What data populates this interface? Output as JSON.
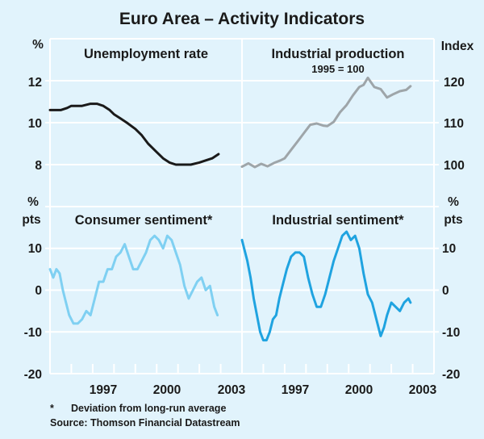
{
  "title": "Euro Area – Activity Indicators",
  "footnote_marker": "*",
  "footnote": "Deviation from long-run average",
  "source": "Source: Thomson Financial Datastream",
  "colors": {
    "background": "#e1f3fc",
    "grid": "#ffffff",
    "unemployment": "#1a1a1a",
    "industrial_production": "#9ea5a9",
    "consumer_sentiment": "#7fd0f2",
    "industrial_sentiment": "#1fa3e0"
  },
  "chart_data": [
    {
      "type": "line",
      "title": "Unemployment rate",
      "panel": "top-left",
      "ylabel": "%",
      "yaxis_side": "left",
      "ylim": [
        6,
        14
      ],
      "yticks": [
        8,
        10,
        12
      ],
      "xlim": [
        1995,
        2004
      ],
      "x": [
        1995.0,
        1995.5,
        1995.8,
        1996.0,
        1996.5,
        1996.9,
        1997.2,
        1997.5,
        1997.8,
        1998.0,
        1998.3,
        1998.6,
        1999.0,
        1999.3,
        1999.6,
        2000.0,
        2000.3,
        2000.6,
        2000.9,
        2001.2,
        2001.6,
        2002.0,
        2002.3,
        2002.6,
        2002.9
      ],
      "values": [
        10.6,
        10.6,
        10.7,
        10.8,
        10.8,
        10.9,
        10.9,
        10.8,
        10.6,
        10.4,
        10.2,
        10.0,
        9.7,
        9.4,
        9.0,
        8.6,
        8.3,
        8.1,
        8.0,
        8.0,
        8.0,
        8.1,
        8.2,
        8.3,
        8.5
      ]
    },
    {
      "type": "line",
      "title": "Industrial production",
      "subtitle": "1995 = 100",
      "panel": "top-right",
      "ylabel": "Index",
      "yaxis_side": "right",
      "ylim": [
        90,
        130
      ],
      "yticks": [
        100,
        110,
        120
      ],
      "xlim": [
        1995,
        2004
      ],
      "x": [
        1995.0,
        1995.3,
        1995.6,
        1995.9,
        1996.2,
        1996.5,
        1996.8,
        1997.0,
        1997.3,
        1997.6,
        1997.9,
        1998.2,
        1998.5,
        1998.8,
        1999.0,
        1999.3,
        1999.6,
        1999.9,
        2000.2,
        2000.5,
        2000.7,
        2000.9,
        2001.2,
        2001.5,
        2001.8,
        2002.1,
        2002.4,
        2002.7,
        2002.9
      ],
      "values": [
        99.5,
        100.3,
        99.4,
        100.2,
        99.6,
        100.4,
        101.0,
        101.5,
        103.5,
        105.5,
        107.5,
        109.5,
        109.8,
        109.3,
        109.2,
        110.2,
        112.5,
        114.2,
        116.5,
        118.5,
        119.0,
        120.7,
        118.5,
        118.0,
        116.0,
        116.8,
        117.5,
        117.8,
        118.7
      ]
    },
    {
      "type": "line",
      "title": "Consumer sentiment*",
      "panel": "bottom-left",
      "ylabel": "% pts",
      "yaxis_side": "left",
      "ylim": [
        -20,
        20
      ],
      "yticks": [
        -20,
        -10,
        0,
        10
      ],
      "xticks": [
        "1997",
        "2000",
        "2003"
      ],
      "xlim": [
        1995,
        2004
      ],
      "x": [
        1995.0,
        1995.15,
        1995.3,
        1995.45,
        1995.6,
        1995.75,
        1995.9,
        1996.1,
        1996.3,
        1996.5,
        1996.7,
        1996.9,
        1997.1,
        1997.3,
        1997.5,
        1997.7,
        1997.9,
        1998.1,
        1998.3,
        1998.5,
        1998.7,
        1998.9,
        1999.1,
        1999.3,
        1999.5,
        1999.7,
        1999.9,
        2000.1,
        2000.3,
        2000.5,
        2000.7,
        2000.9,
        2001.1,
        2001.3,
        2001.5,
        2001.7,
        2001.9,
        2002.1,
        2002.3,
        2002.5,
        2002.7,
        2002.85
      ],
      "values": [
        5,
        3,
        5,
        4,
        0,
        -3,
        -6,
        -8,
        -8,
        -7,
        -5,
        -6,
        -2,
        2,
        2,
        5,
        5,
        8,
        9,
        11,
        8,
        5,
        5,
        7,
        9,
        12,
        13,
        12,
        10,
        13,
        12,
        9,
        6,
        1,
        -2,
        0,
        2,
        3,
        0,
        1,
        -4,
        -6
      ]
    },
    {
      "type": "line",
      "title": "Industrial sentiment*",
      "panel": "bottom-right",
      "ylabel": "% pts",
      "yaxis_side": "right",
      "ylim": [
        -20,
        20
      ],
      "yticks": [
        -20,
        -10,
        0,
        10
      ],
      "xticks": [
        "1997",
        "2000",
        "2003"
      ],
      "xlim": [
        1995,
        2004
      ],
      "x": [
        1995.0,
        1995.1,
        1995.25,
        1995.4,
        1995.55,
        1995.7,
        1995.85,
        1996.0,
        1996.15,
        1996.3,
        1996.45,
        1996.6,
        1996.75,
        1996.9,
        1997.1,
        1997.3,
        1997.5,
        1997.7,
        1997.9,
        1998.1,
        1998.3,
        1998.5,
        1998.7,
        1998.9,
        1999.1,
        1999.3,
        1999.5,
        1999.7,
        1999.9,
        2000.1,
        2000.3,
        2000.5,
        2000.7,
        2000.9,
        2001.1,
        2001.3,
        2001.5,
        2001.65,
        2001.8,
        2002.0,
        2002.2,
        2002.4,
        2002.6,
        2002.8,
        2002.9
      ],
      "values": [
        12,
        10,
        7,
        3,
        -2,
        -6,
        -10,
        -12,
        -12,
        -10,
        -7,
        -6,
        -2,
        1,
        5,
        8,
        9,
        9,
        8,
        3,
        -1,
        -4,
        -4,
        -1,
        3,
        7,
        10,
        13,
        14,
        12,
        13,
        10,
        4,
        -1,
        -3,
        -7,
        -11,
        -9,
        -6,
        -3,
        -4,
        -5,
        -3,
        -2,
        -3
      ]
    }
  ],
  "axes": {
    "top_left_unit": "%",
    "top_right_unit": "Index",
    "bottom_left_unit_line1": "%",
    "bottom_left_unit_line2": "pts",
    "bottom_right_unit_line1": "%",
    "bottom_right_unit_line2": "pts",
    "top_left_ticks": [
      "12",
      "10",
      "8"
    ],
    "top_right_ticks": [
      "120",
      "110",
      "100"
    ],
    "bottom_left_ticks": [
      "10",
      "0",
      "-10",
      "-20"
    ],
    "bottom_right_ticks": [
      "10",
      "0",
      "-10",
      "-20"
    ],
    "x_labels_left": [
      "1997",
      "2000",
      "2003"
    ],
    "x_labels_right": [
      "1997",
      "2000",
      "2003"
    ]
  }
}
